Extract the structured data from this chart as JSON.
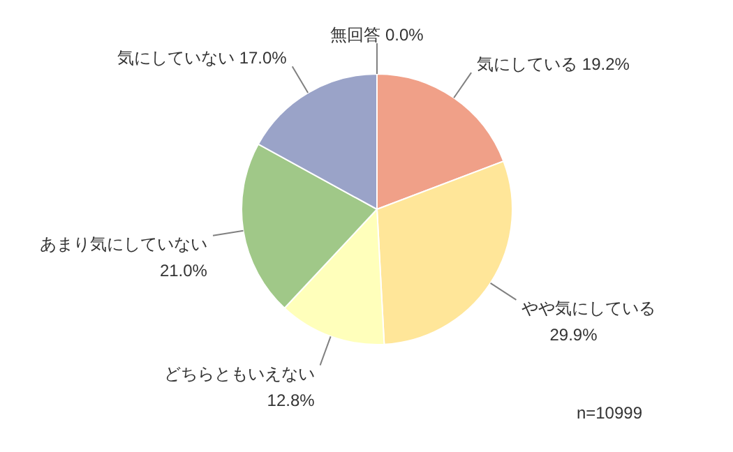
{
  "chart_data": {
    "type": "pie",
    "categories": [
      "気にしている",
      "やや気にしている",
      "どちらともいえない",
      "あまり気にしていない",
      "気にしていない",
      "無回答"
    ],
    "values": [
      19.2,
      29.9,
      12.8,
      21.0,
      17.0,
      0.0
    ],
    "value_labels": [
      "19.2%",
      "29.9%",
      "12.8%",
      "21.0%",
      "17.0%",
      "0.0%"
    ],
    "colors": [
      "#f0a088",
      "#ffe699",
      "#ffffbb",
      "#a0c888",
      "#9aa3c8",
      "#d0d0d0"
    ],
    "annotations": [
      "n=10999"
    ]
  }
}
